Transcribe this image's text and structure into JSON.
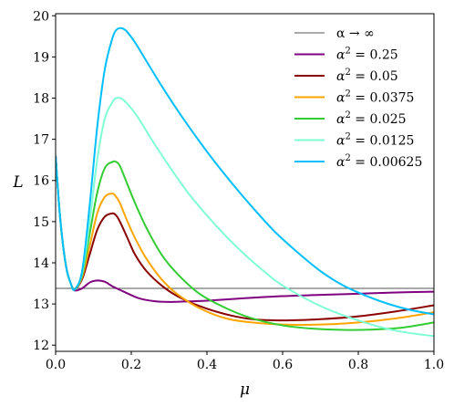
{
  "chart_data": {
    "type": "line",
    "xlabel": "μ",
    "ylabel": "L",
    "xlim": [
      0.0,
      1.0
    ],
    "ylim": [
      11.85,
      20.05
    ],
    "xticks": [
      "0.0",
      "0.2",
      "0.4",
      "0.6",
      "0.8",
      "1.0"
    ],
    "yticks": [
      "12",
      "13",
      "14",
      "15",
      "16",
      "17",
      "18",
      "19",
      "20"
    ],
    "grid": false,
    "legend_position": "top-right",
    "reference_line": {
      "label_text": "α → ∞",
      "y": 13.38,
      "color": "#555555"
    },
    "series": [
      {
        "label_base": "α",
        "label_exp": "2",
        "label_value": " = 0.25",
        "color": "#800080",
        "x": [
          0.0,
          0.01,
          0.02,
          0.03,
          0.04,
          0.05,
          0.07,
          0.09,
          0.11,
          0.13,
          0.15,
          0.18,
          0.22,
          0.26,
          0.3,
          0.34,
          0.4,
          0.5,
          0.6,
          0.7,
          0.8,
          0.9,
          1.0
        ],
        "y": [
          16.6,
          15.3,
          14.4,
          13.8,
          13.5,
          13.33,
          13.38,
          13.52,
          13.57,
          13.54,
          13.43,
          13.3,
          13.14,
          13.07,
          13.05,
          13.06,
          13.08,
          13.14,
          13.19,
          13.22,
          13.25,
          13.28,
          13.3
        ]
      },
      {
        "label_base": "α",
        "label_exp": "2",
        "label_value": " = 0.05",
        "color": "#8b0000",
        "x": [
          0.0,
          0.01,
          0.02,
          0.03,
          0.04,
          0.05,
          0.07,
          0.09,
          0.11,
          0.13,
          0.15,
          0.16,
          0.17,
          0.19,
          0.21,
          0.24,
          0.28,
          0.32,
          0.38,
          0.45,
          0.52,
          0.6,
          0.7,
          0.8,
          0.9,
          1.0
        ],
        "y": [
          16.6,
          15.3,
          14.4,
          13.8,
          13.5,
          13.35,
          13.6,
          14.2,
          14.8,
          15.12,
          15.2,
          15.15,
          15.0,
          14.6,
          14.2,
          13.8,
          13.45,
          13.2,
          12.95,
          12.75,
          12.63,
          12.6,
          12.63,
          12.7,
          12.82,
          12.97
        ]
      },
      {
        "label_base": "α",
        "label_exp": "2",
        "label_value": " = 0.0375",
        "color": "#ffa500",
        "x": [
          0.0,
          0.01,
          0.02,
          0.03,
          0.04,
          0.05,
          0.07,
          0.09,
          0.11,
          0.13,
          0.15,
          0.16,
          0.17,
          0.19,
          0.21,
          0.24,
          0.28,
          0.32,
          0.38,
          0.45,
          0.52,
          0.6,
          0.7,
          0.8,
          0.9,
          1.0
        ],
        "y": [
          16.6,
          15.3,
          14.4,
          13.8,
          13.5,
          13.35,
          13.65,
          14.4,
          15.2,
          15.6,
          15.68,
          15.6,
          15.45,
          15.0,
          14.6,
          14.1,
          13.6,
          13.25,
          12.9,
          12.65,
          12.55,
          12.5,
          12.5,
          12.55,
          12.65,
          12.8
        ]
      },
      {
        "label_base": "α",
        "label_exp": "2",
        "label_value": " = 0.025",
        "color": "#32cd32",
        "x": [
          0.0,
          0.01,
          0.02,
          0.03,
          0.04,
          0.05,
          0.07,
          0.09,
          0.11,
          0.13,
          0.15,
          0.16,
          0.17,
          0.19,
          0.21,
          0.24,
          0.28,
          0.32,
          0.38,
          0.45,
          0.52,
          0.6,
          0.68,
          0.76,
          0.84,
          0.92,
          1.0
        ],
        "y": [
          16.6,
          15.3,
          14.4,
          13.8,
          13.5,
          13.35,
          13.7,
          14.7,
          15.7,
          16.3,
          16.45,
          16.45,
          16.35,
          15.9,
          15.45,
          14.85,
          14.2,
          13.75,
          13.25,
          12.9,
          12.65,
          12.48,
          12.4,
          12.37,
          12.38,
          12.43,
          12.55
        ]
      },
      {
        "label_base": "α",
        "label_exp": "2",
        "label_value": " = 0.0125",
        "color": "#7fffd4",
        "x": [
          0.0,
          0.01,
          0.02,
          0.03,
          0.04,
          0.05,
          0.07,
          0.09,
          0.11,
          0.13,
          0.15,
          0.16,
          0.17,
          0.18,
          0.2,
          0.22,
          0.25,
          0.3,
          0.35,
          0.4,
          0.45,
          0.5,
          0.55,
          0.6,
          0.7,
          0.8,
          0.9,
          1.0
        ],
        "y": [
          16.6,
          15.3,
          14.4,
          13.8,
          13.5,
          13.35,
          13.75,
          15.0,
          16.5,
          17.5,
          17.9,
          18.0,
          18.0,
          17.95,
          17.75,
          17.5,
          17.05,
          16.35,
          15.7,
          15.15,
          14.65,
          14.2,
          13.8,
          13.45,
          12.95,
          12.6,
          12.35,
          12.22
        ]
      },
      {
        "label_base": "α",
        "label_exp": "2",
        "label_value": " = 0.00625",
        "color": "#00bfff",
        "x": [
          0.0,
          0.01,
          0.02,
          0.03,
          0.04,
          0.05,
          0.07,
          0.09,
          0.11,
          0.13,
          0.15,
          0.16,
          0.17,
          0.18,
          0.19,
          0.21,
          0.24,
          0.28,
          0.33,
          0.4,
          0.46,
          0.52,
          0.58,
          0.64,
          0.7,
          0.76,
          0.82,
          0.88,
          0.94,
          1.0
        ],
        "y": [
          16.6,
          15.3,
          14.4,
          13.8,
          13.5,
          13.35,
          13.8,
          15.4,
          17.3,
          18.7,
          19.45,
          19.65,
          19.7,
          19.68,
          19.6,
          19.35,
          18.9,
          18.3,
          17.6,
          16.7,
          16.0,
          15.35,
          14.75,
          14.25,
          13.8,
          13.45,
          13.2,
          13.0,
          12.85,
          12.75
        ]
      }
    ]
  }
}
